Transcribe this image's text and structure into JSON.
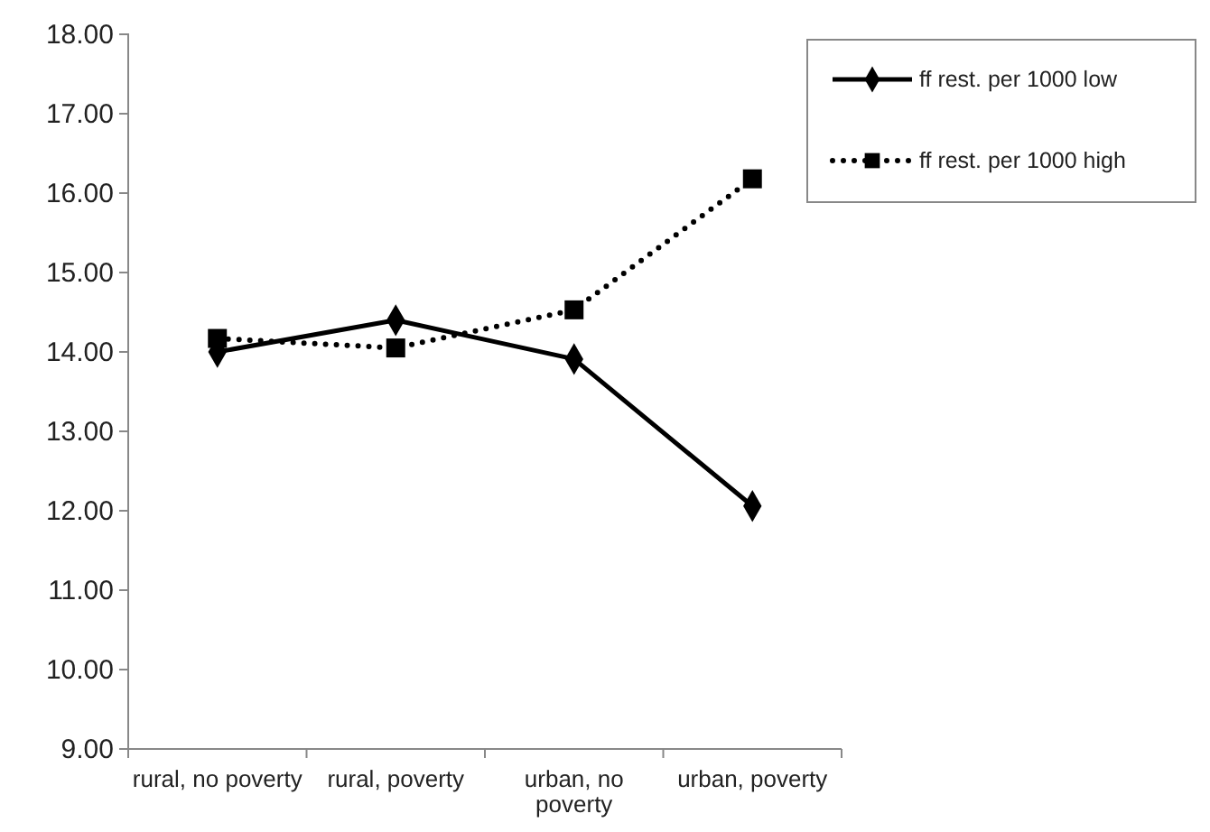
{
  "chart_data": {
    "type": "line",
    "categories": [
      "rural, no poverty",
      "rural, poverty",
      "urban, no poverty",
      "urban, poverty"
    ],
    "series": [
      {
        "name": "ff rest. per 1000 low",
        "color": "#000000",
        "values": [
          14.0,
          14.4,
          13.91,
          12.06
        ],
        "marker": "diamond",
        "line_style": "solid"
      },
      {
        "name": "ff rest. per 1000 high",
        "color": "#000000",
        "values": [
          14.17,
          14.05,
          14.53,
          16.18
        ],
        "marker": "square",
        "line_style": "dotted"
      }
    ],
    "ylim": [
      9,
      18
    ],
    "yticks": [
      {
        "value": 9,
        "label": "9.00"
      },
      {
        "value": 10,
        "label": "10.00"
      },
      {
        "value": 11,
        "label": "11.00"
      },
      {
        "value": 12,
        "label": "12.00"
      },
      {
        "value": 13,
        "label": "13.00"
      },
      {
        "value": 14,
        "label": "14.00"
      },
      {
        "value": 15,
        "label": "15.00"
      },
      {
        "value": 16,
        "label": "16.00"
      },
      {
        "value": 17,
        "label": "17.00"
      },
      {
        "value": 18,
        "label": "18.00"
      }
    ],
    "grid": false,
    "legend": "top right"
  }
}
